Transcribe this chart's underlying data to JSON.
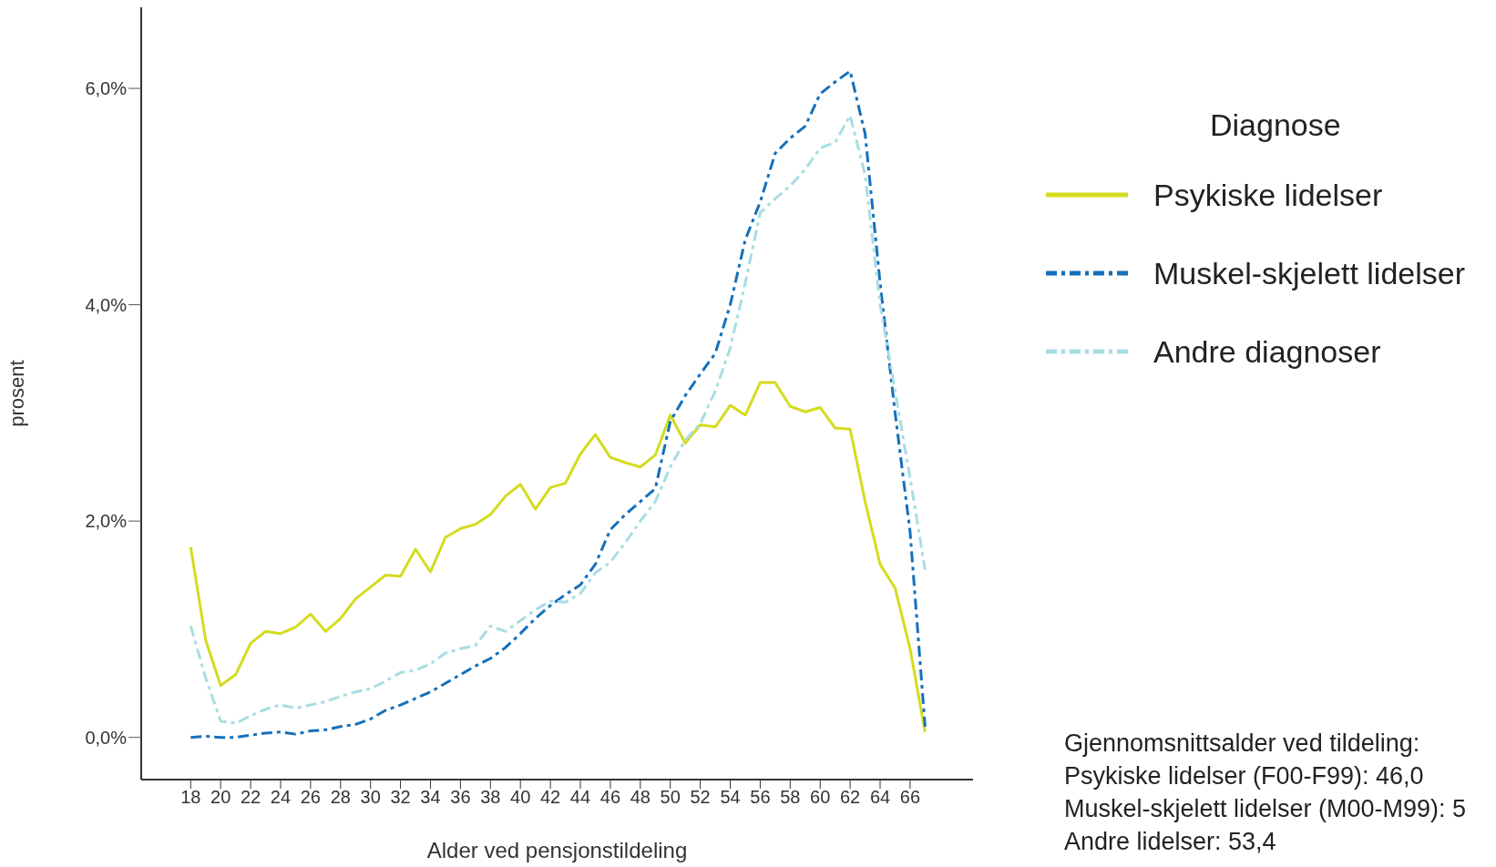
{
  "chart_data": {
    "type": "line",
    "xlabel": "Alder ved pensjonstildeling",
    "ylabel": "prosent",
    "legend_title": "Diagnose",
    "legend": "top right",
    "grid": false,
    "marker": "none",
    "x": [
      18,
      19,
      20,
      21,
      22,
      23,
      24,
      25,
      26,
      27,
      28,
      29,
      30,
      31,
      32,
      33,
      34,
      35,
      36,
      37,
      38,
      39,
      40,
      41,
      42,
      43,
      44,
      45,
      46,
      47,
      48,
      49,
      50,
      51,
      52,
      53,
      54,
      55,
      56,
      57,
      58,
      59,
      60,
      61,
      62,
      63,
      64,
      65,
      66,
      67
    ],
    "xlim": [
      14.7,
      70.2
    ],
    "xticks": [
      18,
      20,
      22,
      24,
      26,
      28,
      30,
      32,
      34,
      36,
      38,
      40,
      42,
      44,
      46,
      48,
      50,
      52,
      54,
      56,
      58,
      60,
      62,
      64,
      66
    ],
    "ylim": [
      -0.39,
      6.75
    ],
    "yticks": [
      {
        "value": 0,
        "label": "0,0%"
      },
      {
        "value": 2,
        "label": "2,0%"
      },
      {
        "value": 4,
        "label": "4,0%"
      },
      {
        "value": 6,
        "label": "6,0%"
      }
    ],
    "series": [
      {
        "name": "Psykiske lidelser",
        "color": "#d4dc1e",
        "line_style": "solid",
        "values": [
          1.76,
          0.9,
          0.48,
          0.58,
          0.87,
          0.98,
          0.96,
          1.02,
          1.14,
          0.98,
          1.1,
          1.28,
          1.39,
          1.5,
          1.49,
          1.74,
          1.53,
          1.85,
          1.93,
          1.97,
          2.06,
          2.23,
          2.34,
          2.11,
          2.31,
          2.35,
          2.62,
          2.8,
          2.59,
          2.54,
          2.5,
          2.61,
          2.98,
          2.72,
          2.89,
          2.87,
          3.07,
          2.98,
          3.28,
          3.28,
          3.06,
          3.01,
          3.05,
          2.86,
          2.85,
          2.18,
          1.6,
          1.38,
          0.82,
          0.05
        ]
      },
      {
        "name": "Muskel-skjelett lidelser",
        "color": "#1570bb",
        "line_style": "dashed",
        "values": [
          0,
          0.01,
          0,
          0,
          0.02,
          0.04,
          0.05,
          0.03,
          0.06,
          0.07,
          0.1,
          0.12,
          0.17,
          0.25,
          0.3,
          0.36,
          0.42,
          0.5,
          0.58,
          0.66,
          0.73,
          0.83,
          0.96,
          1.1,
          1.22,
          1.32,
          1.41,
          1.6,
          1.92,
          2.06,
          2.18,
          2.3,
          2.92,
          3.16,
          3.36,
          3.55,
          4.0,
          4.6,
          4.95,
          5.4,
          5.54,
          5.65,
          5.95,
          6.06,
          6.16,
          5.58,
          4.2,
          3.0,
          1.9,
          0.1
        ]
      },
      {
        "name": "Andre diagnoser",
        "color": "#a8dde2",
        "line_style": "dashed",
        "values": [
          1.03,
          0.55,
          0.15,
          0.13,
          0.2,
          0.26,
          0.3,
          0.27,
          0.3,
          0.33,
          0.38,
          0.42,
          0.45,
          0.52,
          0.6,
          0.62,
          0.68,
          0.78,
          0.82,
          0.85,
          1.03,
          0.98,
          1.08,
          1.18,
          1.26,
          1.25,
          1.33,
          1.52,
          1.62,
          1.8,
          2.0,
          2.18,
          2.5,
          2.75,
          2.9,
          3.2,
          3.6,
          4.2,
          4.85,
          4.98,
          5.1,
          5.25,
          5.45,
          5.5,
          5.75,
          5.2,
          4.0,
          3.2,
          2.4,
          1.55
        ]
      }
    ],
    "annotations": [
      "Gjennomsnittsalder ved tildeling:",
      "Psykiske lidelser (F00-F99): 46,0",
      "Muskel-skjelett lidelser (M00-M99): 5",
      "Andre lidelser: 53,4"
    ]
  }
}
